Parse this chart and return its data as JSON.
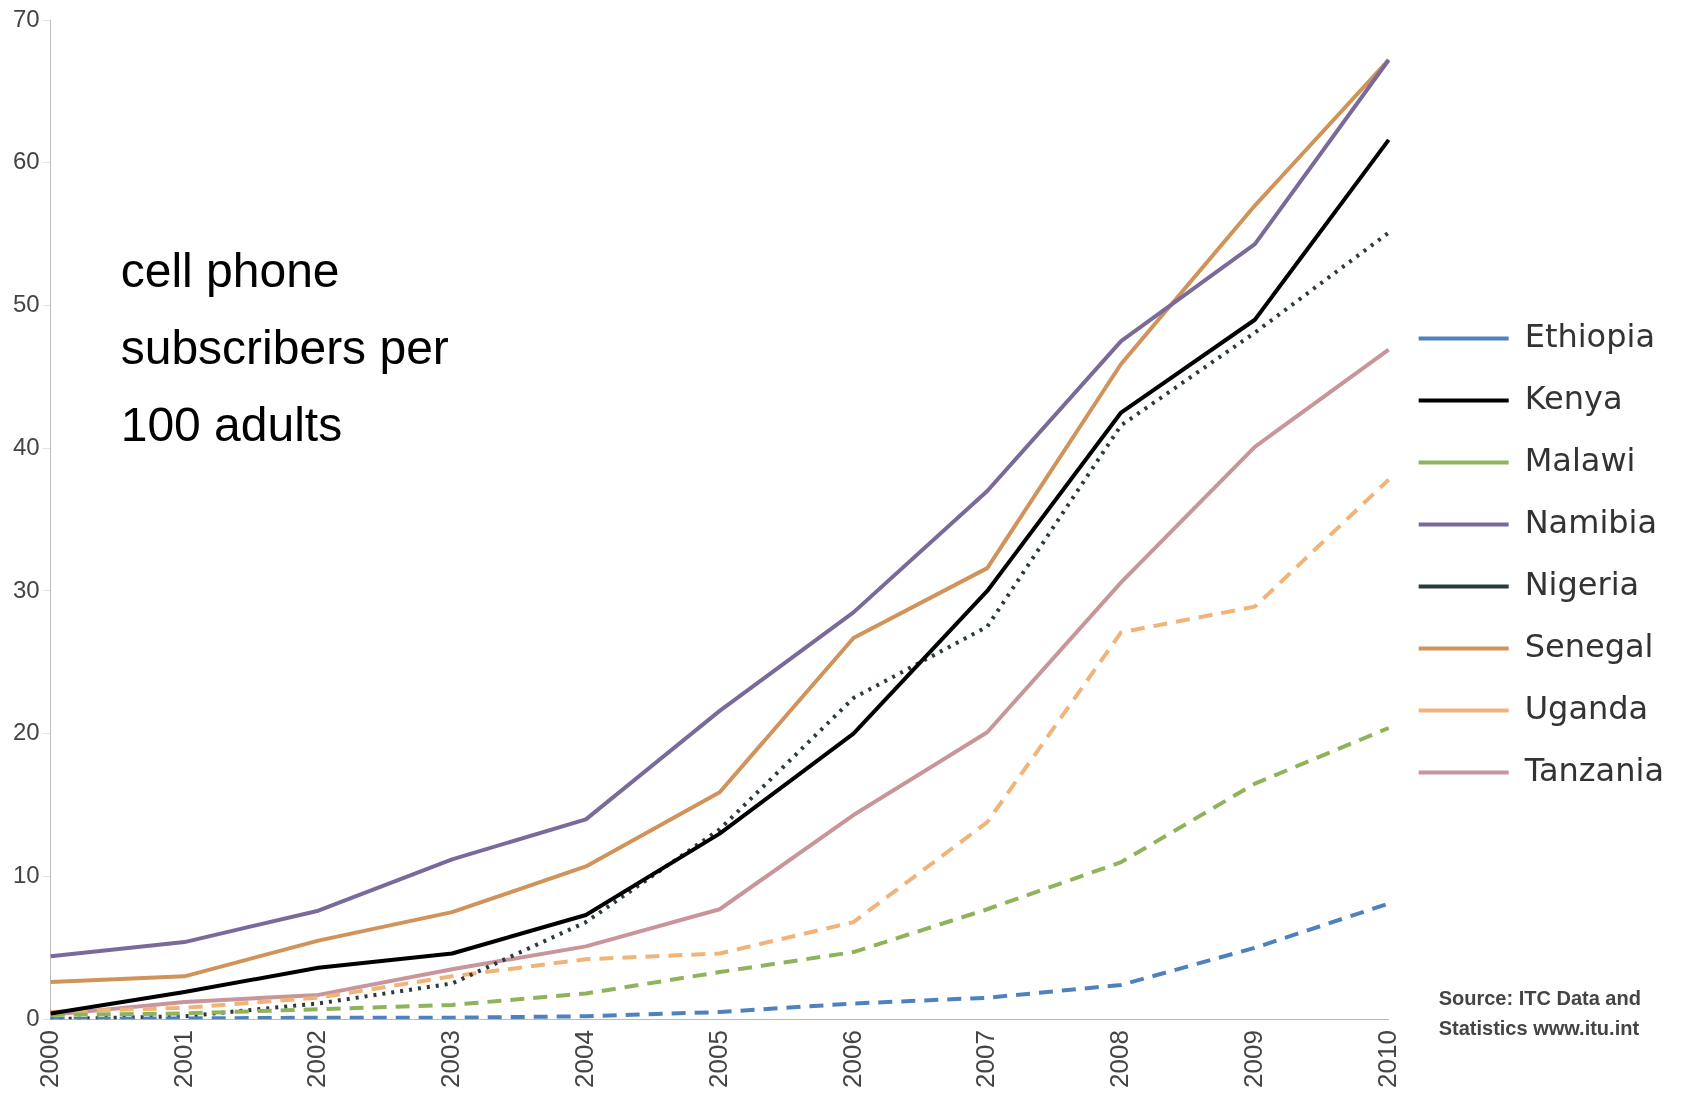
{
  "chart_data": {
    "type": "line",
    "categories": [
      "2000",
      "2001",
      "2002",
      "2003",
      "2004",
      "2005",
      "2006",
      "2007",
      "2008",
      "2009",
      "2010"
    ],
    "series": [
      {
        "name": "Ethiopia",
        "color": "#4f81bd",
        "line_style": "dashed",
        "values": [
          0,
          0.05,
          0.1,
          0.1,
          0.2,
          0.5,
          1.1,
          1.5,
          2.4,
          5,
          8.1
        ]
      },
      {
        "name": "Kenya",
        "color": "#000000",
        "line_style": "solid",
        "values": [
          0.4,
          1.9,
          3.6,
          4.6,
          7.3,
          13,
          20,
          30,
          42.5,
          49,
          61.6
        ]
      },
      {
        "name": "Malawi",
        "color": "#8fb35a",
        "line_style": "dashed",
        "values": [
          0.3,
          0.4,
          0.7,
          1,
          1.8,
          3.3,
          4.7,
          7.7,
          11,
          16.5,
          20.4
        ]
      },
      {
        "name": "Namibia",
        "color": "#7a6a9a",
        "line_style": "solid",
        "values": [
          4.4,
          5.4,
          7.6,
          11.2,
          14,
          21.6,
          28.5,
          37,
          47.5,
          54.3,
          67.2
        ]
      },
      {
        "name": "Nigeria",
        "color": "#2a3a40",
        "line_style": "dotted",
        "values": [
          0,
          0.2,
          1.1,
          2.5,
          6.8,
          13.3,
          22.5,
          27.5,
          41.6,
          48.1,
          55.1
        ]
      },
      {
        "name": "Senegal",
        "color": "#d0935a",
        "line_style": "solid",
        "values": [
          2.6,
          3,
          5.5,
          7.5,
          10.7,
          15.9,
          26.7,
          31.6,
          45.9,
          57,
          67.2
        ]
      },
      {
        "name": "Uganda",
        "color": "#f0b47a",
        "line_style": "dashed",
        "values": [
          0.5,
          0.8,
          1.5,
          3,
          4.2,
          4.6,
          6.8,
          13.8,
          27.1,
          28.9,
          37.8
        ]
      },
      {
        "name": "Tanzania",
        "color": "#c8969a",
        "line_style": "solid",
        "values": [
          0.3,
          1.2,
          1.7,
          3.5,
          5.1,
          7.7,
          14.3,
          20.1,
          30.6,
          40.1,
          46.9
        ]
      }
    ],
    "ylim": [
      0,
      70
    ],
    "yticks": [
      0,
      10,
      20,
      30,
      40,
      50,
      60,
      70
    ],
    "grid": false,
    "legend": "right",
    "marker": "none",
    "annotations": [
      "cell phone subscribers per 100 adults",
      "Source: ITC Data and Statistics www.itu.int"
    ]
  }
}
